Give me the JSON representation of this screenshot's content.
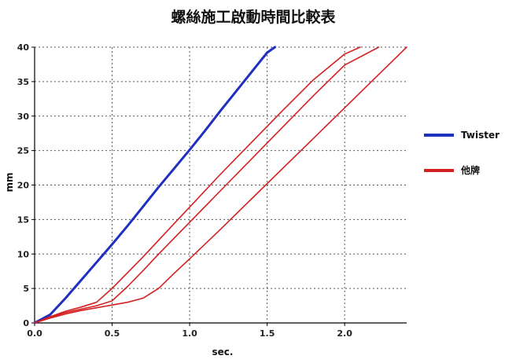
{
  "chart_data": {
    "type": "line",
    "title": "螺絲施工啟動時間比較表",
    "xlabel": "sec.",
    "ylabel": "mm",
    "xlim": [
      0,
      2.4
    ],
    "ylim": [
      0,
      40
    ],
    "x_ticks": [
      "0.0",
      "0.5",
      "1.0",
      "1.5",
      "2.0"
    ],
    "y_ticks": [
      "0",
      "5",
      "10",
      "15",
      "20",
      "25",
      "30",
      "35",
      "40"
    ],
    "grid": true,
    "legend_position": "right",
    "series": [
      {
        "name": "Twister",
        "color": "#1f2fbf",
        "points": [
          [
            0,
            0
          ],
          [
            0.1,
            1.2
          ],
          [
            0.2,
            3.6
          ],
          [
            0.3,
            6.2
          ],
          [
            0.4,
            8.8
          ],
          [
            0.5,
            11.4
          ],
          [
            0.6,
            14.1
          ],
          [
            0.7,
            16.9
          ],
          [
            0.8,
            19.7
          ],
          [
            0.9,
            22.4
          ],
          [
            1.0,
            25.1
          ],
          [
            1.1,
            27.9
          ],
          [
            1.2,
            30.8
          ],
          [
            1.3,
            33.6
          ],
          [
            1.4,
            36.4
          ],
          [
            1.5,
            39.2
          ],
          [
            1.55,
            40.0
          ]
        ]
      },
      {
        "name": "他牌",
        "color": "#d42020",
        "points": [
          [
            0,
            0
          ],
          [
            0.1,
            0.9
          ],
          [
            0.2,
            1.7
          ],
          [
            0.3,
            2.3
          ],
          [
            0.4,
            3.0
          ],
          [
            0.5,
            5.0
          ],
          [
            0.6,
            7.3
          ],
          [
            0.7,
            9.6
          ],
          [
            0.8,
            12.0
          ],
          [
            0.9,
            14.4
          ],
          [
            1.0,
            16.8
          ],
          [
            1.2,
            21.6
          ],
          [
            1.4,
            26.2
          ],
          [
            1.6,
            30.8
          ],
          [
            1.8,
            35.3
          ],
          [
            2.0,
            39.0
          ],
          [
            2.1,
            40.0
          ]
        ]
      },
      {
        "name": "",
        "color": "#d42020",
        "points": [
          [
            0,
            0
          ],
          [
            0.1,
            0.8
          ],
          [
            0.2,
            1.5
          ],
          [
            0.3,
            2.0
          ],
          [
            0.4,
            2.5
          ],
          [
            0.5,
            3.2
          ],
          [
            0.6,
            5.3
          ],
          [
            0.7,
            7.6
          ],
          [
            0.8,
            10.0
          ],
          [
            0.9,
            12.3
          ],
          [
            1.0,
            14.6
          ],
          [
            1.2,
            19.2
          ],
          [
            1.4,
            23.8
          ],
          [
            1.6,
            28.4
          ],
          [
            1.8,
            33.0
          ],
          [
            2.0,
            37.4
          ],
          [
            2.22,
            40.0
          ]
        ]
      },
      {
        "name": "",
        "color": "#d42020",
        "points": [
          [
            0,
            0
          ],
          [
            0.1,
            0.7
          ],
          [
            0.2,
            1.3
          ],
          [
            0.3,
            1.8
          ],
          [
            0.4,
            2.2
          ],
          [
            0.5,
            2.6
          ],
          [
            0.6,
            3.0
          ],
          [
            0.7,
            3.6
          ],
          [
            0.8,
            5.0
          ],
          [
            0.9,
            7.2
          ],
          [
            1.0,
            9.3
          ],
          [
            1.2,
            13.6
          ],
          [
            1.4,
            18.0
          ],
          [
            1.6,
            22.4
          ],
          [
            1.8,
            26.8
          ],
          [
            2.0,
            31.2
          ],
          [
            2.2,
            35.6
          ],
          [
            2.4,
            40.0
          ]
        ]
      }
    ]
  }
}
